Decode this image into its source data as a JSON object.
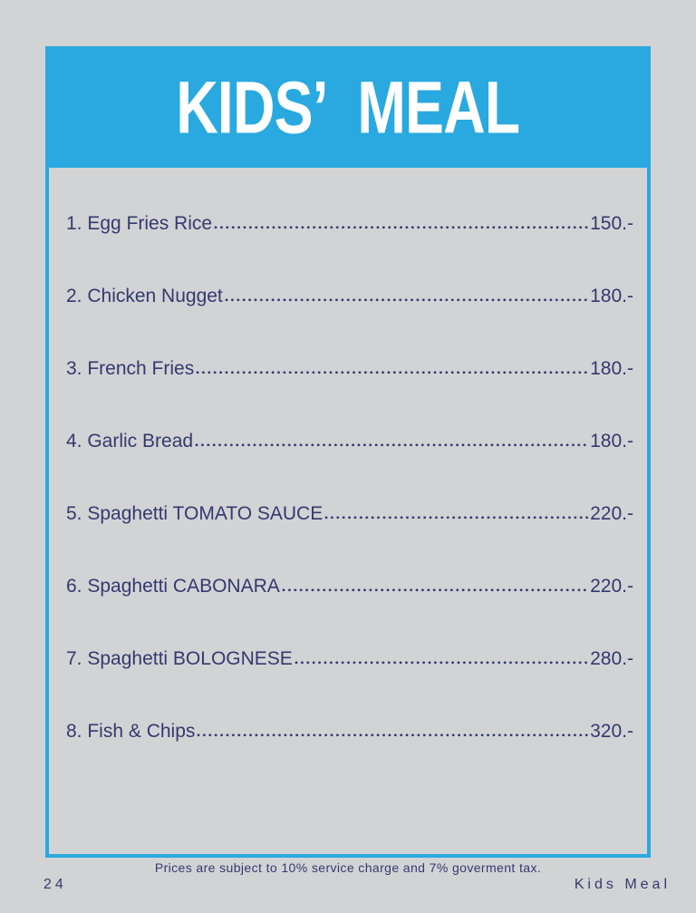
{
  "colors": {
    "accent_blue": "#29a9e0",
    "navy_text": "#333a6e",
    "background_gray": "#d2d3d5",
    "title_white": "#ffffff"
  },
  "header": {
    "title": "KIDS’  MEAL"
  },
  "menu": {
    "items": [
      {
        "label": "1. Egg Fries Rice",
        "price": "150.-"
      },
      {
        "label": "2. Chicken Nugget",
        "price": "180.-"
      },
      {
        "label": "3. French Fries",
        "price": "180.-"
      },
      {
        "label": "4. Garlic Bread",
        "price": "180.-"
      },
      {
        "label": "5. Spaghetti TOMATO SAUCE",
        "price": "220.-"
      },
      {
        "label": "6. Spaghetti CABONARA",
        "price": "220.-"
      },
      {
        "label": "7. Spaghetti BOLOGNESE",
        "price": "280.-"
      },
      {
        "label": "8. Fish & Chips",
        "price": "320.-"
      }
    ]
  },
  "footer": {
    "disclaimer": "Prices are subject to 10% service charge and 7% goverment tax.",
    "page_number": "24",
    "section_label": "Kids Meal"
  }
}
